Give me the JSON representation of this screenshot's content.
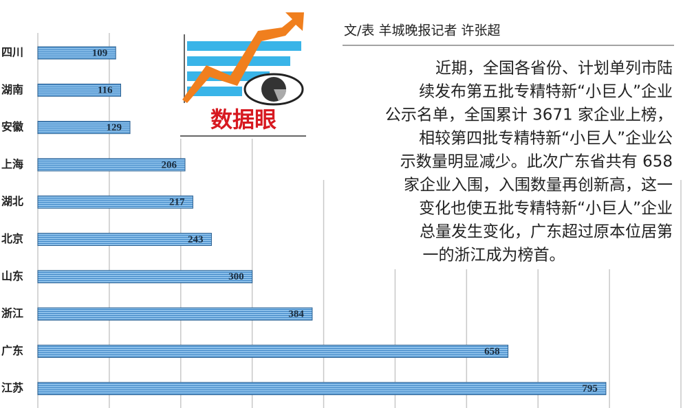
{
  "chart_data": {
    "type": "bar",
    "orientation": "horizontal",
    "categories": [
      "四川",
      "湖南",
      "安徽",
      "上海",
      "湖北",
      "北京",
      "山东",
      "浙江",
      "广东",
      "江苏"
    ],
    "values": [
      109,
      116,
      129,
      206,
      217,
      243,
      300,
      384,
      658,
      795
    ],
    "color": "#5fa3dc",
    "xlim": [
      0,
      900
    ],
    "xticks": [
      0,
      100,
      200,
      300,
      400,
      500,
      600,
      700,
      800,
      900
    ],
    "grid": true
  },
  "logo": {
    "title": "数据眼"
  },
  "byline": "文/表 羊城晚报记者 许张超",
  "article": {
    "lines": [
      "近期，全国各省份、计划单列市陆",
      "续发布第五批专精特新“小巨人”企业",
      "公示名单，全国累计 3671 家企业上榜，",
      "相较第四批专精特新“小巨人”企业公",
      "示数量明显减少。此次广东省共有 658",
      "家企业入围，入围数量再创新高，这一",
      "变化也使五批专精特新“小巨人”企业",
      "总量发生变化，广东超过原本位居第",
      "一的浙江成为榜首。"
    ]
  }
}
